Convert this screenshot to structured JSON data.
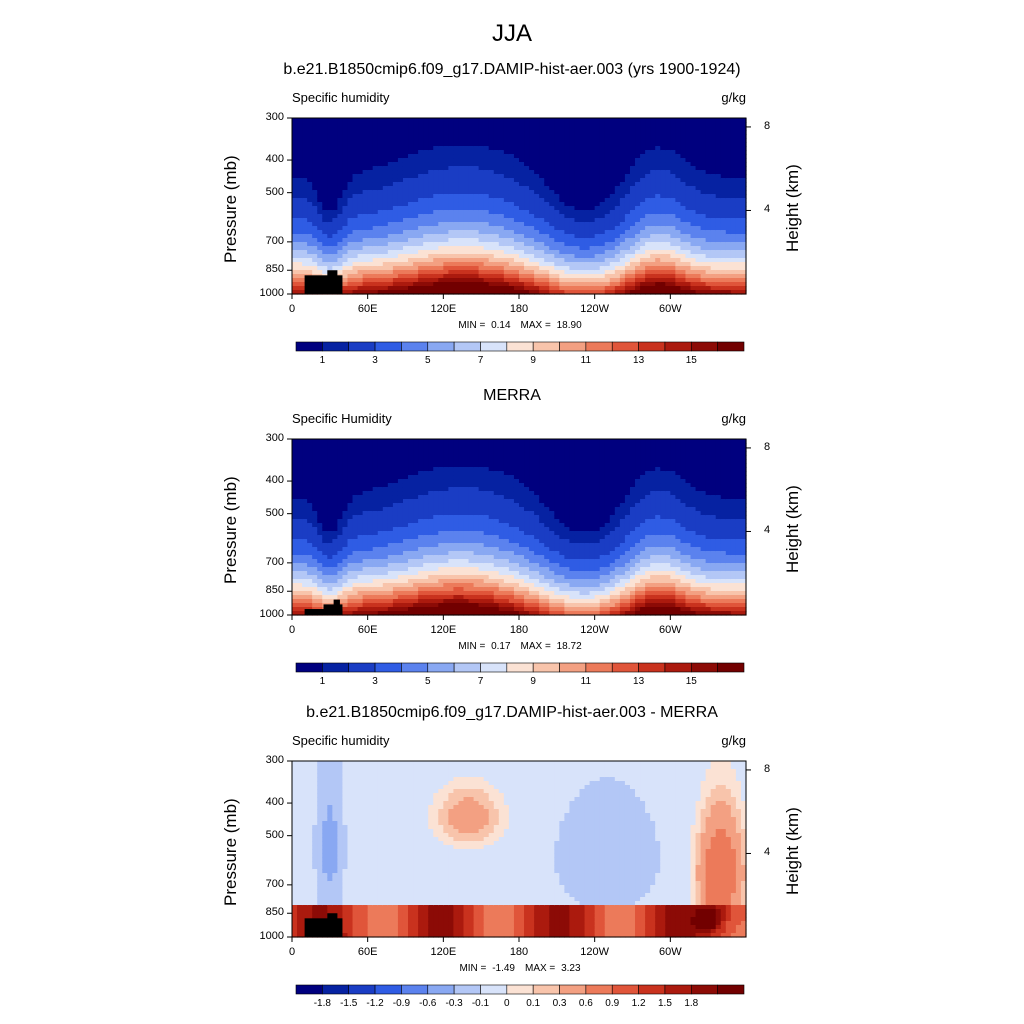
{
  "figure": {
    "title": "JJA",
    "lbar_min_label": "MIN = ",
    "lbar_max_label": "MAX = "
  },
  "chart_data": [
    {
      "type": "heatmap",
      "title": "b.e21.B1850cmip6.f09_g17.DAMIP-hist-aer.003 (yrs 1900-1924)",
      "left_label": "Specific humidity",
      "units": "g/kg",
      "ylabel": "Pressure (mb)",
      "ylabel_right": "Height (km)",
      "xticks": [
        "0",
        "60E",
        "120E",
        "180",
        "120W",
        "60W"
      ],
      "xtick_values": [
        0,
        60,
        120,
        180,
        240,
        300
      ],
      "xlim": [
        0,
        360
      ],
      "yticks": [
        "300",
        "400",
        "500",
        "700",
        "850",
        "1000"
      ],
      "ytick_values": [
        300,
        400,
        500,
        700,
        850,
        1000
      ],
      "ylim": [
        300,
        1000
      ],
      "yticks_right": [
        "8",
        "4"
      ],
      "yticks_right_values": [
        8,
        4
      ],
      "stats": {
        "min": "0.14",
        "max": "18.90"
      },
      "colorbar": {
        "levels": [
          0.5,
          1,
          2,
          3,
          4,
          5,
          6,
          7,
          8,
          9,
          10,
          11,
          12,
          13,
          14,
          15,
          16
        ],
        "labels": [
          "1",
          "3",
          "5",
          "7",
          "9",
          "11",
          "13",
          "15"
        ],
        "palette": [
          "#00007f",
          "#0622a2",
          "#1a3dc4",
          "#2f5ce4",
          "#5b82ee",
          "#89a8f2",
          "#b3c7f6",
          "#d8e3fa",
          "#fbe2d4",
          "#f8c4ab",
          "#f3a082",
          "#ec7a5a",
          "#e0553a",
          "#c9321e",
          "#ab1a0e",
          "#8c0b06",
          "#720000"
        ]
      }
    },
    {
      "type": "heatmap",
      "title": "MERRA",
      "left_label": "Specific Humidity",
      "units": "g/kg",
      "ylabel": "Pressure (mb)",
      "ylabel_right": "Height (km)",
      "xticks": [
        "0",
        "60E",
        "120E",
        "180",
        "120W",
        "60W"
      ],
      "xtick_values": [
        0,
        60,
        120,
        180,
        240,
        300
      ],
      "xlim": [
        0,
        360
      ],
      "yticks": [
        "300",
        "400",
        "500",
        "700",
        "850",
        "1000"
      ],
      "ytick_values": [
        300,
        400,
        500,
        700,
        850,
        1000
      ],
      "ylim": [
        300,
        1000
      ],
      "yticks_right": [
        "8",
        "4"
      ],
      "yticks_right_values": [
        8,
        4
      ],
      "stats": {
        "min": "0.17",
        "max": "18.72"
      },
      "colorbar": {
        "levels": [
          0.5,
          1,
          2,
          3,
          4,
          5,
          6,
          7,
          8,
          9,
          10,
          11,
          12,
          13,
          14,
          15,
          16
        ],
        "labels": [
          "1",
          "3",
          "5",
          "7",
          "9",
          "11",
          "13",
          "15"
        ],
        "palette": [
          "#00007f",
          "#0622a2",
          "#1a3dc4",
          "#2f5ce4",
          "#5b82ee",
          "#89a8f2",
          "#b3c7f6",
          "#d8e3fa",
          "#fbe2d4",
          "#f8c4ab",
          "#f3a082",
          "#ec7a5a",
          "#e0553a",
          "#c9321e",
          "#ab1a0e",
          "#8c0b06",
          "#720000"
        ]
      }
    },
    {
      "type": "heatmap",
      "title": "b.e21.B1850cmip6.f09_g17.DAMIP-hist-aer.003 - MERRA",
      "left_label": "Specific humidity",
      "units": "g/kg",
      "ylabel": "Pressure (mb)",
      "ylabel_right": "Height (km)",
      "xticks": [
        "0",
        "60E",
        "120E",
        "180",
        "120W",
        "60W"
      ],
      "xtick_values": [
        0,
        60,
        120,
        180,
        240,
        300
      ],
      "xlim": [
        0,
        360
      ],
      "yticks": [
        "300",
        "400",
        "500",
        "700",
        "850",
        "1000"
      ],
      "ytick_values": [
        300,
        400,
        500,
        700,
        850,
        1000
      ],
      "ylim": [
        300,
        1000
      ],
      "yticks_right": [
        "8",
        "4"
      ],
      "yticks_right_values": [
        8,
        4
      ],
      "stats": {
        "min": "-1.49",
        "max": "3.23"
      },
      "colorbar": {
        "levels": [
          -2.1,
          -1.8,
          -1.5,
          -1.2,
          -0.9,
          -0.6,
          -0.3,
          -0.1,
          0,
          0.1,
          0.3,
          0.6,
          0.9,
          1.2,
          1.5,
          1.8,
          2.1
        ],
        "labels": [
          "-1.8",
          "-1.5",
          "-1.2",
          "-0.9",
          "-0.6",
          "-0.3",
          "-0.1",
          "0",
          "0.1",
          "0.3",
          "0.6",
          "0.9",
          "1.2",
          "1.5",
          "1.8"
        ],
        "palette": [
          "#00007f",
          "#0622a2",
          "#1a3dc4",
          "#2f5ce4",
          "#5b82ee",
          "#89a8f2",
          "#b3c7f6",
          "#d8e3fa",
          "#fbe2d4",
          "#f8c4ab",
          "#f3a082",
          "#ec7a5a",
          "#e0553a",
          "#c9321e",
          "#ab1a0e",
          "#8c0b06",
          "#720000"
        ]
      }
    }
  ]
}
